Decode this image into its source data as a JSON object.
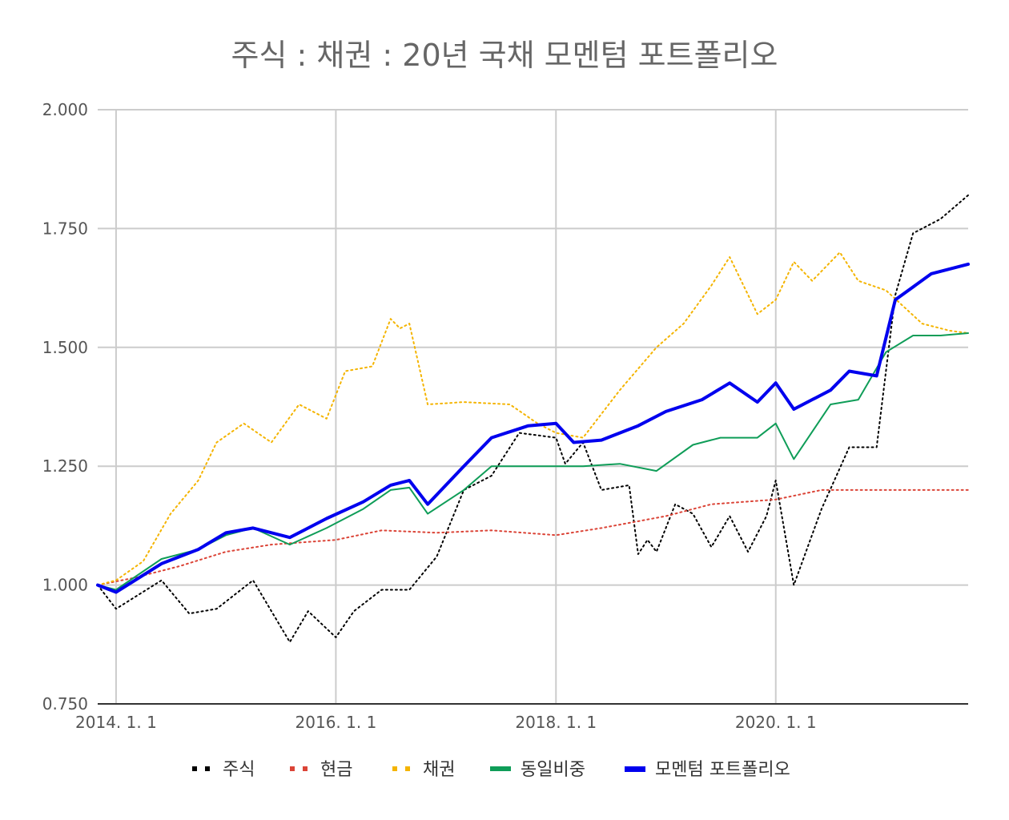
{
  "chart_data": {
    "type": "line",
    "title": "주식 : 채권 : 20년 국채 모멘텀 포트폴리오",
    "x_range": [
      "2014-01-01",
      "2021-10-01"
    ],
    "ylim": [
      0.75,
      2.0
    ],
    "y_ticks": [
      {
        "value": 2.0,
        "label": "2.000"
      },
      {
        "value": 1.75,
        "label": "1.750"
      },
      {
        "value": 1.5,
        "label": "1.500"
      },
      {
        "value": 1.25,
        "label": "1.250"
      },
      {
        "value": 1.0,
        "label": "1.000"
      },
      {
        "value": 0.75,
        "label": "0.750"
      }
    ],
    "x_ticks": [
      {
        "value": "2014-01-01",
        "label": "2014. 1. 1"
      },
      {
        "value": "2016-01-01",
        "label": "2016. 1. 1"
      },
      {
        "value": "2018-01-01",
        "label": "2018. 1. 1"
      },
      {
        "value": "2020-01-01",
        "label": "2020. 1. 1"
      }
    ],
    "grid": true,
    "legend_position": "bottom",
    "series": [
      {
        "name": "주식",
        "color": "#000000",
        "style": "dotted",
        "points": [
          [
            "2013-11-01",
            1.0
          ],
          [
            "2014-01-01",
            0.95
          ],
          [
            "2014-06-01",
            1.01
          ],
          [
            "2014-09-01",
            0.94
          ],
          [
            "2014-12-01",
            0.95
          ],
          [
            "2015-04-01",
            1.01
          ],
          [
            "2015-08-01",
            0.88
          ],
          [
            "2015-10-01",
            0.945
          ],
          [
            "2016-01-01",
            0.89
          ],
          [
            "2016-03-01",
            0.945
          ],
          [
            "2016-06-01",
            0.99
          ],
          [
            "2016-09-01",
            0.99
          ],
          [
            "2016-12-01",
            1.06
          ],
          [
            "2017-03-01",
            1.2
          ],
          [
            "2017-06-01",
            1.23
          ],
          [
            "2017-09-01",
            1.32
          ],
          [
            "2018-01-01",
            1.31
          ],
          [
            "2018-02-01",
            1.255
          ],
          [
            "2018-04-01",
            1.3
          ],
          [
            "2018-06-01",
            1.2
          ],
          [
            "2018-09-01",
            1.21
          ],
          [
            "2018-10-01",
            1.065
          ],
          [
            "2018-11-01",
            1.095
          ],
          [
            "2018-12-01",
            1.07
          ],
          [
            "2019-02-01",
            1.17
          ],
          [
            "2019-04-01",
            1.15
          ],
          [
            "2019-06-01",
            1.08
          ],
          [
            "2019-08-01",
            1.145
          ],
          [
            "2019-10-01",
            1.07
          ],
          [
            "2019-12-01",
            1.145
          ],
          [
            "2020-01-01",
            1.22
          ],
          [
            "2020-03-01",
            1.0
          ],
          [
            "2020-06-01",
            1.16
          ],
          [
            "2020-09-01",
            1.29
          ],
          [
            "2020-12-01",
            1.29
          ],
          [
            "2021-02-01",
            1.61
          ],
          [
            "2021-04-01",
            1.74
          ],
          [
            "2021-07-01",
            1.77
          ],
          [
            "2021-10-01",
            1.82
          ]
        ]
      },
      {
        "name": "현금",
        "color": "#db4437",
        "style": "dotted",
        "points": [
          [
            "2013-11-01",
            1.0
          ],
          [
            "2014-03-01",
            1.015
          ],
          [
            "2014-08-01",
            1.04
          ],
          [
            "2015-01-01",
            1.07
          ],
          [
            "2015-06-01",
            1.085
          ],
          [
            "2016-01-01",
            1.095
          ],
          [
            "2016-06-01",
            1.115
          ],
          [
            "2016-12-01",
            1.11
          ],
          [
            "2017-06-01",
            1.115
          ],
          [
            "2018-01-01",
            1.105
          ],
          [
            "2018-06-01",
            1.12
          ],
          [
            "2019-01-01",
            1.145
          ],
          [
            "2019-06-01",
            1.17
          ],
          [
            "2020-01-01",
            1.18
          ],
          [
            "2020-06-01",
            1.2
          ],
          [
            "2021-01-01",
            1.2
          ],
          [
            "2021-10-01",
            1.2
          ]
        ]
      },
      {
        "name": "채권",
        "color": "#f4b400",
        "style": "dotted",
        "points": [
          [
            "2013-11-01",
            1.0
          ],
          [
            "2014-01-01",
            1.01
          ],
          [
            "2014-04-01",
            1.05
          ],
          [
            "2014-07-01",
            1.15
          ],
          [
            "2014-10-01",
            1.22
          ],
          [
            "2014-12-01",
            1.3
          ],
          [
            "2015-03-01",
            1.34
          ],
          [
            "2015-06-01",
            1.3
          ],
          [
            "2015-09-01",
            1.38
          ],
          [
            "2015-12-01",
            1.35
          ],
          [
            "2016-02-01",
            1.45
          ],
          [
            "2016-05-01",
            1.46
          ],
          [
            "2016-07-01",
            1.56
          ],
          [
            "2016-08-01",
            1.54
          ],
          [
            "2016-09-01",
            1.55
          ],
          [
            "2016-11-01",
            1.38
          ],
          [
            "2017-03-01",
            1.385
          ],
          [
            "2017-08-01",
            1.38
          ],
          [
            "2017-11-01",
            1.34
          ],
          [
            "2018-01-01",
            1.32
          ],
          [
            "2018-04-01",
            1.31
          ],
          [
            "2018-08-01",
            1.41
          ],
          [
            "2018-12-01",
            1.5
          ],
          [
            "2019-03-01",
            1.55
          ],
          [
            "2019-06-01",
            1.63
          ],
          [
            "2019-08-01",
            1.69
          ],
          [
            "2019-11-01",
            1.57
          ],
          [
            "2020-01-01",
            1.6
          ],
          [
            "2020-03-01",
            1.68
          ],
          [
            "2020-05-01",
            1.64
          ],
          [
            "2020-08-01",
            1.7
          ],
          [
            "2020-10-01",
            1.64
          ],
          [
            "2021-01-01",
            1.62
          ],
          [
            "2021-05-01",
            1.55
          ],
          [
            "2021-08-01",
            1.535
          ],
          [
            "2021-10-01",
            1.53
          ]
        ]
      },
      {
        "name": "동일비중",
        "color": "#0f9d58",
        "style": "solid",
        "points": [
          [
            "2013-11-01",
            1.0
          ],
          [
            "2014-01-01",
            0.99
          ],
          [
            "2014-06-01",
            1.055
          ],
          [
            "2014-10-01",
            1.075
          ],
          [
            "2015-01-01",
            1.105
          ],
          [
            "2015-04-01",
            1.12
          ],
          [
            "2015-08-01",
            1.085
          ],
          [
            "2015-12-01",
            1.12
          ],
          [
            "2016-04-01",
            1.16
          ],
          [
            "2016-07-01",
            1.2
          ],
          [
            "2016-09-01",
            1.205
          ],
          [
            "2016-11-01",
            1.15
          ],
          [
            "2017-03-01",
            1.2
          ],
          [
            "2017-06-01",
            1.25
          ],
          [
            "2017-09-01",
            1.25
          ],
          [
            "2018-01-01",
            1.25
          ],
          [
            "2018-04-01",
            1.25
          ],
          [
            "2018-08-01",
            1.255
          ],
          [
            "2018-12-01",
            1.24
          ],
          [
            "2019-04-01",
            1.295
          ],
          [
            "2019-07-01",
            1.31
          ],
          [
            "2019-11-01",
            1.31
          ],
          [
            "2020-01-01",
            1.34
          ],
          [
            "2020-03-01",
            1.265
          ],
          [
            "2020-07-01",
            1.38
          ],
          [
            "2020-10-01",
            1.39
          ],
          [
            "2021-01-01",
            1.49
          ],
          [
            "2021-04-01",
            1.525
          ],
          [
            "2021-07-01",
            1.525
          ],
          [
            "2021-10-01",
            1.53
          ]
        ]
      },
      {
        "name": "모멘텀 포트폴리오",
        "color": "#0000ee",
        "style": "solid-bold",
        "points": [
          [
            "2013-11-01",
            1.0
          ],
          [
            "2014-01-01",
            0.985
          ],
          [
            "2014-06-01",
            1.045
          ],
          [
            "2014-10-01",
            1.075
          ],
          [
            "2015-01-01",
            1.11
          ],
          [
            "2015-04-01",
            1.12
          ],
          [
            "2015-08-01",
            1.1
          ],
          [
            "2015-12-01",
            1.14
          ],
          [
            "2016-04-01",
            1.175
          ],
          [
            "2016-07-01",
            1.21
          ],
          [
            "2016-09-01",
            1.22
          ],
          [
            "2016-11-01",
            1.17
          ],
          [
            "2017-03-01",
            1.25
          ],
          [
            "2017-06-01",
            1.31
          ],
          [
            "2017-10-01",
            1.335
          ],
          [
            "2018-01-01",
            1.34
          ],
          [
            "2018-03-01",
            1.3
          ],
          [
            "2018-06-01",
            1.305
          ],
          [
            "2018-10-01",
            1.335
          ],
          [
            "2019-01-01",
            1.365
          ],
          [
            "2019-05-01",
            1.39
          ],
          [
            "2019-08-01",
            1.425
          ],
          [
            "2019-11-01",
            1.385
          ],
          [
            "2020-01-01",
            1.425
          ],
          [
            "2020-03-01",
            1.37
          ],
          [
            "2020-07-01",
            1.41
          ],
          [
            "2020-09-01",
            1.45
          ],
          [
            "2020-12-01",
            1.44
          ],
          [
            "2021-02-01",
            1.6
          ],
          [
            "2021-06-01",
            1.655
          ],
          [
            "2021-10-01",
            1.675
          ]
        ]
      }
    ]
  }
}
